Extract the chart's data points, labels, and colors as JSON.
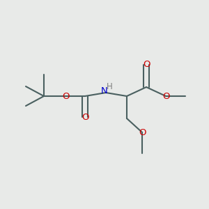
{
  "bg_color": "#e8eae8",
  "bond_color": "#4a6060",
  "oxygen_color": "#cc0000",
  "nitrogen_color": "#0000cc",
  "hydrogen_color": "#808080",
  "line_width": 1.5,
  "figsize": [
    3.0,
    3.0
  ],
  "dpi": 100,
  "xlim": [
    0,
    300
  ],
  "ylim": [
    0,
    300
  ]
}
